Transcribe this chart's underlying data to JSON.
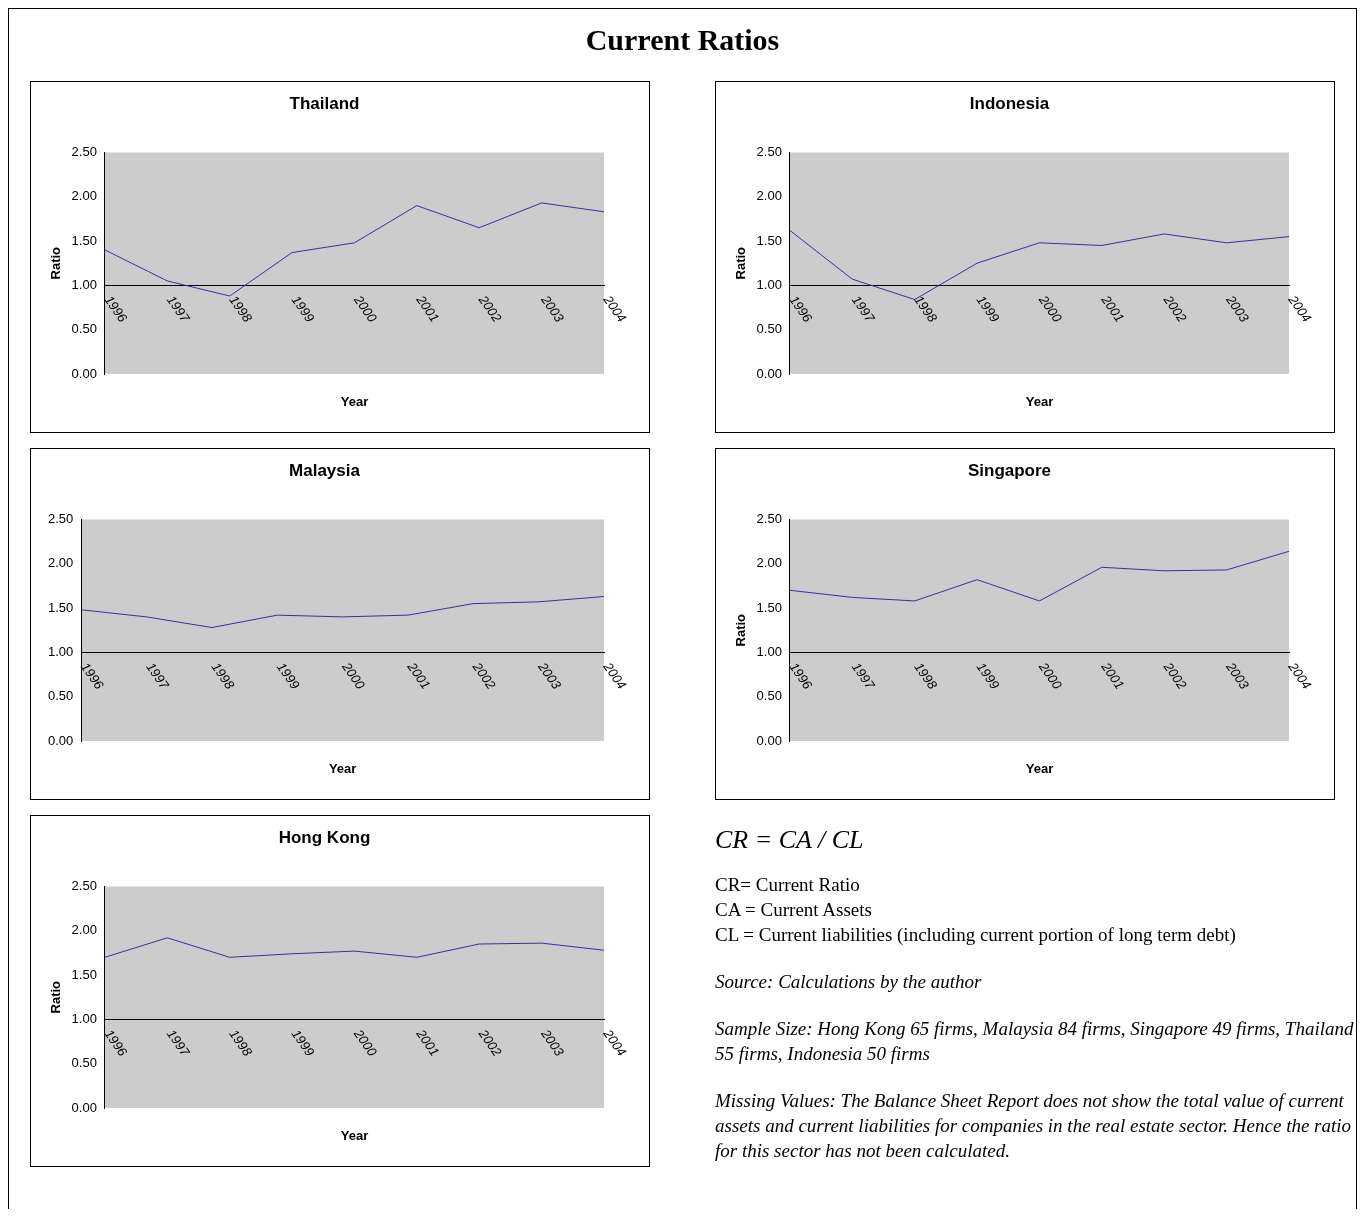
{
  "chart_data": [
    {
      "type": "line",
      "title": "Thailand",
      "xlabel": "Year",
      "ylabel": "Ratio",
      "categories": [
        "1996",
        "1997",
        "1998",
        "1999",
        "2000",
        "2001",
        "2002",
        "2003",
        "2004"
      ],
      "values": [
        1.4,
        1.05,
        0.88,
        1.37,
        1.48,
        1.9,
        1.65,
        1.93,
        1.83
      ],
      "color": "#333399",
      "ylim": [
        0,
        2.5
      ],
      "yticks": [
        {
          "value": 0,
          "label": "0.00"
        },
        {
          "value": 0.5,
          "label": "0.50"
        },
        {
          "value": 1,
          "label": "1.00"
        },
        {
          "value": 1.5,
          "label": "1.50"
        },
        {
          "value": 2,
          "label": "2.00"
        },
        {
          "value": 2.5,
          "label": "2.50"
        }
      ],
      "grid": false,
      "legend": false,
      "marker": "none"
    },
    {
      "type": "line",
      "title": "Indonesia",
      "xlabel": "Year",
      "ylabel": "Ratio",
      "categories": [
        "1996",
        "1997",
        "1998",
        "1999",
        "2000",
        "2001",
        "2002",
        "2003",
        "2004"
      ],
      "values": [
        1.62,
        1.07,
        0.84,
        1.25,
        1.48,
        1.45,
        1.58,
        1.48,
        1.55
      ],
      "color": "#333399",
      "ylim": [
        0,
        2.5
      ],
      "yticks": [
        {
          "value": 0,
          "label": "0.00"
        },
        {
          "value": 0.5,
          "label": "0.50"
        },
        {
          "value": 1,
          "label": "1.00"
        },
        {
          "value": 1.5,
          "label": "1.50"
        },
        {
          "value": 2,
          "label": "2.00"
        },
        {
          "value": 2.5,
          "label": "2.50"
        }
      ],
      "grid": false,
      "legend": false,
      "marker": "none"
    },
    {
      "type": "line",
      "title": "Malaysia",
      "xlabel": "Year",
      "categories": [
        "1996",
        "1997",
        "1998",
        "1999",
        "2000",
        "2001",
        "2002",
        "2003",
        "2004"
      ],
      "values": [
        1.48,
        1.4,
        1.28,
        1.42,
        1.4,
        1.42,
        1.55,
        1.57,
        1.63
      ],
      "color": "#333399",
      "ylim": [
        0,
        2.5
      ],
      "yticks": [
        {
          "value": 0,
          "label": "0.00"
        },
        {
          "value": 0.5,
          "label": "0.50"
        },
        {
          "value": 1,
          "label": "1.00"
        },
        {
          "value": 1.5,
          "label": "1.50"
        },
        {
          "value": 2,
          "label": "2.00"
        },
        {
          "value": 2.5,
          "label": "2.50"
        }
      ],
      "grid": false,
      "legend": false,
      "marker": "none"
    },
    {
      "type": "line",
      "title": "Singapore",
      "xlabel": "Year",
      "ylabel": "Ratio",
      "categories": [
        "1996",
        "1997",
        "1998",
        "1999",
        "2000",
        "2001",
        "2002",
        "2003",
        "2004"
      ],
      "values": [
        1.7,
        1.62,
        1.58,
        1.82,
        1.58,
        1.96,
        1.92,
        1.93,
        2.14
      ],
      "color": "#333399",
      "ylim": [
        0,
        2.5
      ],
      "yticks": [
        {
          "value": 0,
          "label": "0.00"
        },
        {
          "value": 0.5,
          "label": "0.50"
        },
        {
          "value": 1,
          "label": "1.00"
        },
        {
          "value": 1.5,
          "label": "1.50"
        },
        {
          "value": 2,
          "label": "2.00"
        },
        {
          "value": 2.5,
          "label": "2.50"
        }
      ],
      "grid": false,
      "legend": false,
      "marker": "none"
    },
    {
      "type": "line",
      "title": "Hong Kong",
      "xlabel": "Year",
      "ylabel": "Ratio",
      "categories": [
        "1996",
        "1997",
        "1998",
        "1999",
        "2000",
        "2001",
        "2002",
        "2003",
        "2004"
      ],
      "values": [
        1.7,
        1.92,
        1.7,
        1.74,
        1.77,
        1.7,
        1.85,
        1.86,
        1.78
      ],
      "color": "#333399",
      "ylim": [
        0,
        2.5
      ],
      "yticks": [
        {
          "value": 0,
          "label": "0.00"
        },
        {
          "value": 0.5,
          "label": "0.50"
        },
        {
          "value": 1,
          "label": "1.00"
        },
        {
          "value": 1.5,
          "label": "1.50"
        },
        {
          "value": 2,
          "label": "2.00"
        },
        {
          "value": 2.5,
          "label": "2.50"
        }
      ],
      "grid": false,
      "legend": false,
      "marker": "none"
    },
    {
      "type": "other",
      "title": "Current Ratios",
      "annotations": [
        "CR = CA / CL",
        "CR= Current Ratio",
        "CA = Current Assets",
        "CL = Current liabilities (including current portion of long term debt)",
        "Source: Calculations by the author",
        "Sample Size: Hong Kong 65 firms, Malaysia 84 firms, Singapore 49 firms, Thailand 55 firms, Indonesia 50 firms",
        "Missing Values: The Balance Sheet Report does not show the total value of current assets and current liabilities for companies in the real estate sector. Hence the ratio for this sector has not been calculated."
      ]
    }
  ]
}
